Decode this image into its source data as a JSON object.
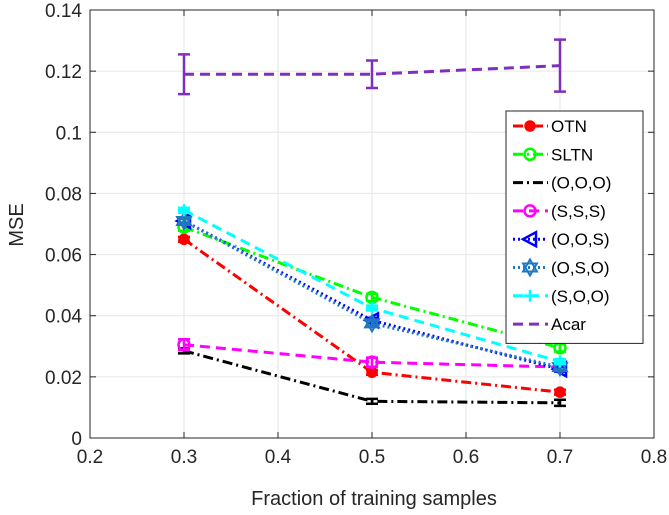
{
  "chart_data": {
    "type": "line",
    "xlabel": "Fraction of training samples",
    "ylabel": "MSE",
    "xlim": [
      0.2,
      0.8
    ],
    "ylim": [
      0,
      0.14
    ],
    "xticks": [
      0.2,
      0.3,
      0.4,
      0.5,
      0.6,
      0.7,
      0.8
    ],
    "xtick_labels": [
      "0.2",
      "0.3",
      "0.4",
      "0.5",
      "0.6",
      "0.7",
      "0.8"
    ],
    "yticks": [
      0,
      0.02,
      0.04,
      0.06,
      0.08,
      0.1,
      0.12,
      0.14
    ],
    "ytick_labels": [
      "0",
      "0.02",
      "0.04",
      "0.06",
      "0.08",
      "0.1",
      "0.12",
      "0.14"
    ],
    "grid": true,
    "legend_position": "right",
    "x": [
      0.3,
      0.5,
      0.7
    ],
    "series": [
      {
        "name": "OTN",
        "values": [
          0.065,
          0.0215,
          0.015
        ],
        "errors": [
          0.0008,
          0.0008,
          0.0008
        ],
        "color": "#ff0000",
        "dash": "dashdot",
        "marker": "dot"
      },
      {
        "name": "SLTN",
        "values": [
          0.069,
          0.046,
          0.0295
        ],
        "errors": [
          0.0012,
          0.0012,
          0.0012
        ],
        "color": "#00ff00",
        "dash": "dashdot",
        "marker": "circle"
      },
      {
        "name": "(O,O,O)",
        "values": [
          0.0285,
          0.012,
          0.0115
        ],
        "errors": [
          0.0008,
          0.0008,
          0.001
        ],
        "color": "#000000",
        "dash": "dashdot",
        "marker": "none"
      },
      {
        "name": "(S,S,S)",
        "values": [
          0.0305,
          0.0248,
          0.0232
        ],
        "errors": [
          0.0018,
          0.0015,
          0.001
        ],
        "color": "#ff00ff",
        "dash": "dashed",
        "marker": "circle"
      },
      {
        "name": "(O,O,S)",
        "values": [
          0.071,
          0.0385,
          0.0225
        ],
        "errors": [
          0.0008,
          0.0008,
          0.0008
        ],
        "color": "#0000ff",
        "dash": "dotted",
        "marker": "triangle-left"
      },
      {
        "name": "(O,S,O)",
        "values": [
          0.071,
          0.0375,
          0.0232
        ],
        "errors": [
          0.0008,
          0.0008,
          0.0008
        ],
        "color": "#1f77c4",
        "dash": "dotted",
        "marker": "hexagram"
      },
      {
        "name": "(S,O,O)",
        "values": [
          0.0745,
          0.0425,
          0.025
        ],
        "errors": [
          0.0008,
          0.0008,
          0.0008
        ],
        "color": "#00ffff",
        "dash": "dashed",
        "marker": "plus"
      },
      {
        "name": "Acar",
        "values": [
          0.119,
          0.119,
          0.1218
        ],
        "errors": [
          0.0065,
          0.0045,
          0.0085
        ],
        "color": "#7e2fbe",
        "dash": "dashed",
        "marker": "none"
      }
    ]
  }
}
